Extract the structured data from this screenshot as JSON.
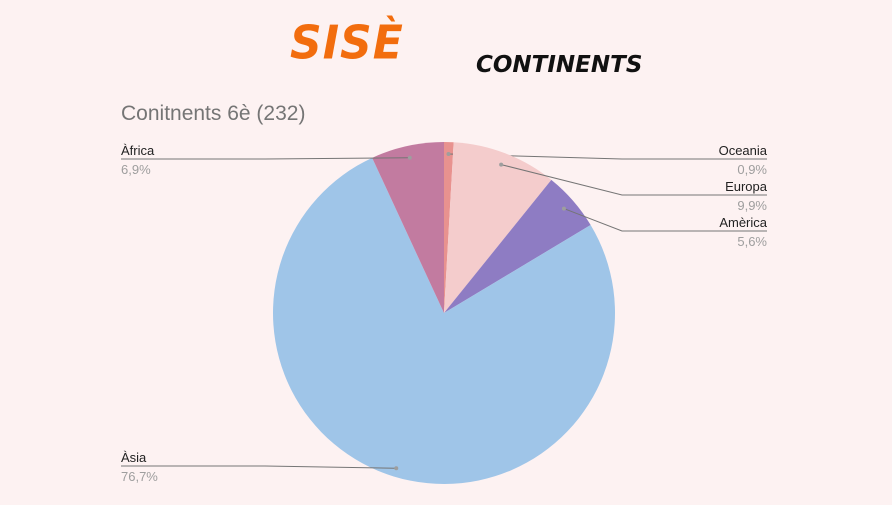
{
  "header": {
    "logo_text": "SISÈ",
    "subtitle": "CONTINENTS"
  },
  "chart_data": {
    "type": "pie",
    "title": "Conitnents 6è (232)",
    "slices": [
      {
        "label": "Oceania",
        "value": 0.9,
        "display": "0,9%",
        "color": "#e8928f"
      },
      {
        "label": "Europa",
        "value": 9.9,
        "display": "9,9%",
        "color": "#f4cccc"
      },
      {
        "label": "Amèrica",
        "value": 5.6,
        "display": "5,6%",
        "color": "#8e7cc3"
      },
      {
        "label": "Àsia",
        "value": 76.7,
        "display": "76,7%",
        "color": "#9fc5e8"
      },
      {
        "label": "Àfrica",
        "value": 6.9,
        "display": "6,9%",
        "color": "#c27ba0"
      }
    ],
    "legend": "labels with leader lines"
  }
}
